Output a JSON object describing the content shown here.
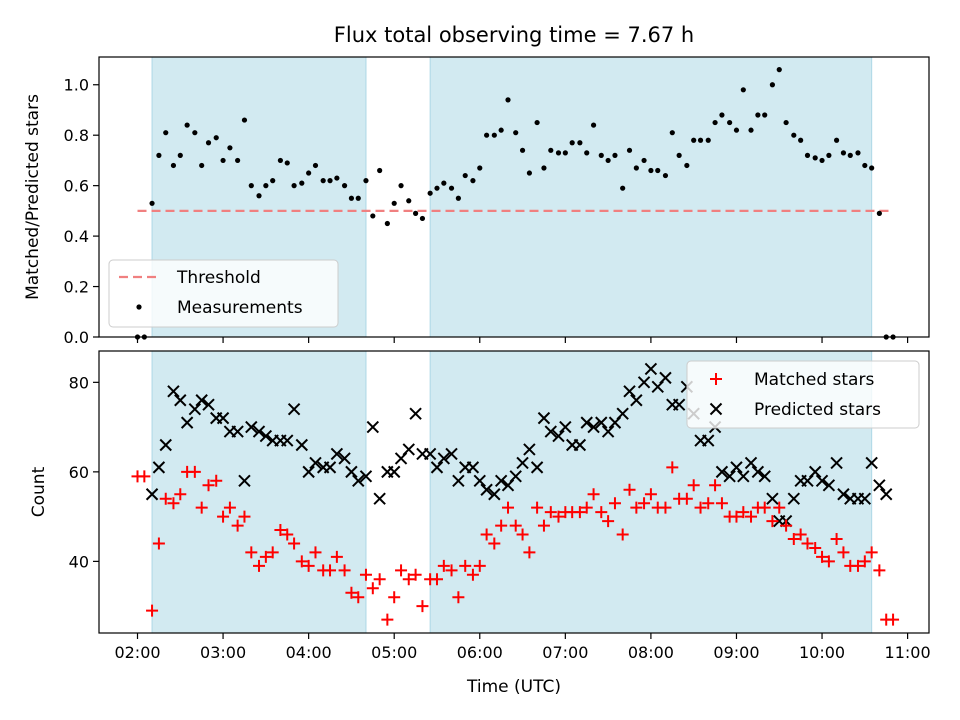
{
  "chart_data": [
    {
      "type": "scatter",
      "title": "Flux total observing time = 7.67 h",
      "ylabel": "Matched/Predicted stars",
      "xlabel": "",
      "xlim": [
        1.55,
        11.25
      ],
      "ylim": [
        0,
        1.11
      ],
      "yticks": [
        0.0,
        0.2,
        0.4,
        0.6,
        0.8,
        1.0
      ],
      "ytick_labels": [
        "0.0",
        "0.2",
        "0.4",
        "0.6",
        "0.8",
        "1.0"
      ],
      "shaded_intervals": [
        [
          2.17,
          4.67
        ],
        [
          5.42,
          10.58
        ]
      ],
      "shade_color": "#add8e6",
      "threshold": {
        "name": "Threshold",
        "y": 0.5,
        "x_range": [
          2.0,
          10.83
        ],
        "color": "#f08080"
      },
      "series": [
        {
          "name": "Measurements",
          "color": "#000000",
          "x": [
            2.0,
            2.08,
            2.17,
            2.25,
            2.33,
            2.42,
            2.5,
            2.58,
            2.67,
            2.75,
            2.83,
            2.92,
            3.0,
            3.08,
            3.17,
            3.25,
            3.33,
            3.42,
            3.5,
            3.58,
            3.67,
            3.75,
            3.83,
            3.92,
            4.0,
            4.08,
            4.17,
            4.25,
            4.33,
            4.42,
            4.5,
            4.58,
            4.67,
            4.75,
            4.83,
            4.92,
            5.0,
            5.08,
            5.17,
            5.25,
            5.33,
            5.42,
            5.5,
            5.58,
            5.67,
            5.75,
            5.83,
            5.92,
            6.0,
            6.08,
            6.17,
            6.25,
            6.33,
            6.42,
            6.5,
            6.58,
            6.67,
            6.75,
            6.83,
            6.92,
            7.0,
            7.08,
            7.17,
            7.25,
            7.33,
            7.42,
            7.5,
            7.58,
            7.67,
            7.75,
            7.83,
            7.92,
            8.0,
            8.08,
            8.17,
            8.25,
            8.33,
            8.42,
            8.5,
            8.58,
            8.67,
            8.75,
            8.83,
            8.92,
            9.0,
            9.08,
            9.17,
            9.25,
            9.33,
            9.42,
            9.5,
            9.58,
            9.67,
            9.75,
            9.83,
            9.92,
            10.0,
            10.08,
            10.17,
            10.25,
            10.33,
            10.42,
            10.5,
            10.58,
            10.67,
            10.75,
            10.83
          ],
          "y": [
            0.0,
            0.0,
            0.53,
            0.72,
            0.81,
            0.68,
            0.72,
            0.84,
            0.81,
            0.68,
            0.77,
            0.79,
            0.7,
            0.75,
            0.7,
            0.86,
            0.6,
            0.56,
            0.6,
            0.62,
            0.7,
            0.69,
            0.6,
            0.61,
            0.65,
            0.68,
            0.62,
            0.62,
            0.63,
            0.6,
            0.55,
            0.55,
            0.62,
            0.48,
            0.66,
            0.45,
            0.53,
            0.6,
            0.54,
            0.49,
            0.47,
            0.57,
            0.59,
            0.61,
            0.59,
            0.55,
            0.64,
            0.62,
            0.67,
            0.8,
            0.8,
            0.82,
            0.94,
            0.81,
            0.74,
            0.65,
            0.85,
            0.67,
            0.74,
            0.73,
            0.73,
            0.77,
            0.77,
            0.73,
            0.84,
            0.72,
            0.7,
            0.72,
            0.59,
            0.74,
            0.67,
            0.7,
            0.66,
            0.66,
            0.64,
            0.81,
            0.72,
            0.68,
            0.78,
            0.78,
            0.78,
            0.85,
            0.88,
            0.85,
            0.82,
            0.98,
            0.82,
            0.88,
            0.88,
            1.0,
            1.06,
            0.85,
            0.8,
            0.78,
            0.72,
            0.71,
            0.7,
            0.72,
            0.78,
            0.73,
            0.72,
            0.73,
            0.68,
            0.67,
            0.49,
            0.0,
            0.0
          ]
        }
      ],
      "legend": {
        "position": "lower-left",
        "entries": [
          "Threshold",
          "Measurements"
        ]
      }
    },
    {
      "type": "scatter",
      "title": "",
      "xlabel": "Time (UTC)",
      "ylabel": "Count",
      "xlim": [
        1.55,
        11.25
      ],
      "ylim": [
        24,
        87
      ],
      "xticks": [
        2,
        3,
        4,
        5,
        6,
        7,
        8,
        9,
        10,
        11
      ],
      "xtick_labels": [
        "02:00",
        "03:00",
        "04:00",
        "05:00",
        "06:00",
        "07:00",
        "08:00",
        "09:00",
        "10:00",
        "11:00"
      ],
      "yticks": [
        40,
        60,
        80
      ],
      "ytick_labels": [
        "40",
        "60",
        "80"
      ],
      "shaded_intervals": [
        [
          2.17,
          4.67
        ],
        [
          5.42,
          10.58
        ]
      ],
      "shade_color": "#add8e6",
      "series": [
        {
          "name": "Matched stars",
          "color": "#ff0000",
          "marker": "plus",
          "x": [
            2.0,
            2.08,
            2.17,
            2.25,
            2.33,
            2.42,
            2.5,
            2.58,
            2.67,
            2.75,
            2.83,
            2.92,
            3.0,
            3.08,
            3.17,
            3.25,
            3.33,
            3.42,
            3.5,
            3.58,
            3.67,
            3.75,
            3.83,
            3.92,
            4.0,
            4.08,
            4.17,
            4.25,
            4.33,
            4.42,
            4.5,
            4.58,
            4.67,
            4.75,
            4.83,
            4.92,
            5.0,
            5.08,
            5.17,
            5.25,
            5.33,
            5.42,
            5.5,
            5.58,
            5.67,
            5.75,
            5.83,
            5.92,
            6.0,
            6.08,
            6.17,
            6.25,
            6.33,
            6.42,
            6.5,
            6.58,
            6.67,
            6.75,
            6.83,
            6.92,
            7.0,
            7.08,
            7.17,
            7.25,
            7.33,
            7.42,
            7.5,
            7.58,
            7.67,
            7.75,
            7.83,
            7.92,
            8.0,
            8.08,
            8.17,
            8.25,
            8.33,
            8.42,
            8.5,
            8.58,
            8.67,
            8.75,
            8.83,
            8.92,
            9.0,
            9.08,
            9.17,
            9.25,
            9.33,
            9.42,
            9.5,
            9.58,
            9.67,
            9.75,
            9.83,
            9.92,
            10.0,
            10.08,
            10.17,
            10.25,
            10.33,
            10.42,
            10.5,
            10.58,
            10.67,
            10.75,
            10.83
          ],
          "y": [
            59,
            59,
            29,
            44,
            54,
            53,
            55,
            60,
            60,
            52,
            57,
            58,
            50,
            52,
            48,
            50,
            42,
            39,
            41,
            42,
            47,
            46,
            44,
            40,
            39,
            42,
            38,
            38,
            41,
            38,
            33,
            32,
            37,
            34,
            36,
            27,
            32,
            38,
            36,
            37,
            30,
            36,
            36,
            39,
            38,
            32,
            39,
            37,
            39,
            46,
            44,
            48,
            52,
            48,
            46,
            42,
            52,
            48,
            51,
            50,
            51,
            51,
            51,
            52,
            55,
            51,
            49,
            53,
            46,
            56,
            52,
            53,
            55,
            52,
            52,
            61,
            54,
            54,
            57,
            52,
            53,
            57,
            53,
            50,
            50,
            51,
            50,
            52,
            52,
            49,
            52,
            48,
            45,
            46,
            44,
            43,
            41,
            40,
            45,
            42,
            39,
            39,
            40,
            42,
            38,
            27,
            27
          ]
        },
        {
          "name": "Predicted stars",
          "color": "#000000",
          "marker": "x",
          "x": [
            2.17,
            2.25,
            2.33,
            2.42,
            2.5,
            2.58,
            2.67,
            2.75,
            2.83,
            2.92,
            3.0,
            3.08,
            3.17,
            3.25,
            3.33,
            3.42,
            3.5,
            3.58,
            3.67,
            3.75,
            3.83,
            3.92,
            4.0,
            4.08,
            4.17,
            4.25,
            4.33,
            4.42,
            4.5,
            4.58,
            4.67,
            4.75,
            4.83,
            4.92,
            5.0,
            5.08,
            5.17,
            5.25,
            5.33,
            5.42,
            5.5,
            5.58,
            5.67,
            5.75,
            5.83,
            5.92,
            6.0,
            6.08,
            6.17,
            6.25,
            6.33,
            6.42,
            6.5,
            6.58,
            6.67,
            6.75,
            6.83,
            6.92,
            7.0,
            7.08,
            7.17,
            7.25,
            7.33,
            7.42,
            7.5,
            7.58,
            7.67,
            7.75,
            7.83,
            7.92,
            8.0,
            8.08,
            8.17,
            8.25,
            8.33,
            8.42,
            8.5,
            8.58,
            8.67,
            8.75,
            8.83,
            8.92,
            9.0,
            9.08,
            9.17,
            9.25,
            9.33,
            9.42,
            9.5,
            9.58,
            9.67,
            9.75,
            9.83,
            9.92,
            10.0,
            10.08,
            10.17,
            10.25,
            10.33,
            10.42,
            10.5,
            10.58,
            10.67,
            10.75
          ],
          "y": [
            55,
            61,
            66,
            78,
            76,
            71,
            74,
            76,
            75,
            72,
            72,
            69,
            69,
            58,
            70,
            69,
            68,
            67,
            67,
            67,
            74,
            66,
            60,
            62,
            61,
            61,
            64,
            63,
            60,
            58,
            59,
            70,
            54,
            60,
            60,
            63,
            65,
            73,
            64,
            64,
            61,
            63,
            64,
            58,
            61,
            61,
            58,
            56,
            55,
            58,
            57,
            59,
            62,
            65,
            61,
            72,
            69,
            68,
            70,
            66,
            66,
            71,
            70,
            71,
            69,
            71,
            73,
            78,
            76,
            80,
            83,
            79,
            81,
            75,
            75,
            79,
            73,
            67,
            67,
            70,
            60,
            59,
            61,
            59,
            62,
            60,
            59,
            54,
            49,
            49,
            54,
            58,
            58,
            60,
            58,
            57,
            62,
            55,
            54,
            54,
            54,
            62,
            57,
            55
          ]
        }
      ],
      "legend": {
        "position": "top-right",
        "entries": [
          "Matched stars",
          "Predicted stars"
        ]
      }
    }
  ]
}
